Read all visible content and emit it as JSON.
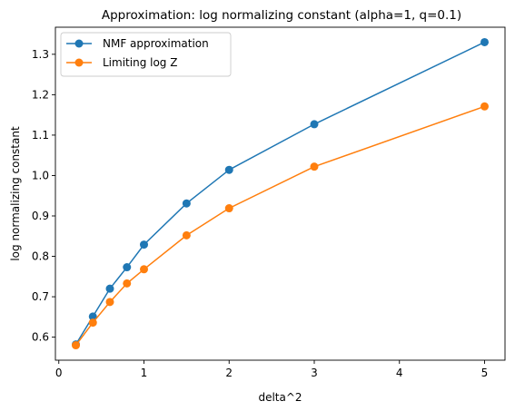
{
  "chart_data": {
    "type": "line",
    "title": "Approximation: log normalizing constant (alpha=1, q=0.1)",
    "xlabel": "delta^2",
    "ylabel": "log normalizing constant",
    "xlim": [
      -0.04,
      5.24
    ],
    "ylim": [
      0.543,
      1.367
    ],
    "xticks": [
      0,
      1,
      2,
      3,
      4,
      5
    ],
    "xtick_labels": [
      "0",
      "1",
      "2",
      "3",
      "4",
      "5"
    ],
    "yticks": [
      0.6,
      0.7,
      0.8,
      0.9,
      1.0,
      1.1,
      1.2,
      1.3
    ],
    "ytick_labels": [
      "0.6",
      "0.7",
      "0.8",
      "0.9",
      "1.0",
      "1.1",
      "1.2",
      "1.3"
    ],
    "grid": false,
    "legend_position": "top-left",
    "series": [
      {
        "name": "NMF approximation",
        "color": "#1f77b4",
        "marker": "circle",
        "x": [
          0.2,
          0.4,
          0.6,
          0.8,
          1.0,
          1.5,
          2.0,
          3.0,
          5.0
        ],
        "y": [
          0.582,
          0.651,
          0.72,
          0.773,
          0.829,
          0.931,
          1.014,
          1.127,
          1.33
        ]
      },
      {
        "name": "Limiting log Z",
        "color": "#ff7f0e",
        "marker": "circle",
        "x": [
          0.2,
          0.4,
          0.6,
          0.8,
          1.0,
          1.5,
          2.0,
          3.0,
          5.0
        ],
        "y": [
          0.58,
          0.636,
          0.687,
          0.733,
          0.768,
          0.852,
          0.919,
          1.022,
          1.171
        ]
      }
    ]
  }
}
